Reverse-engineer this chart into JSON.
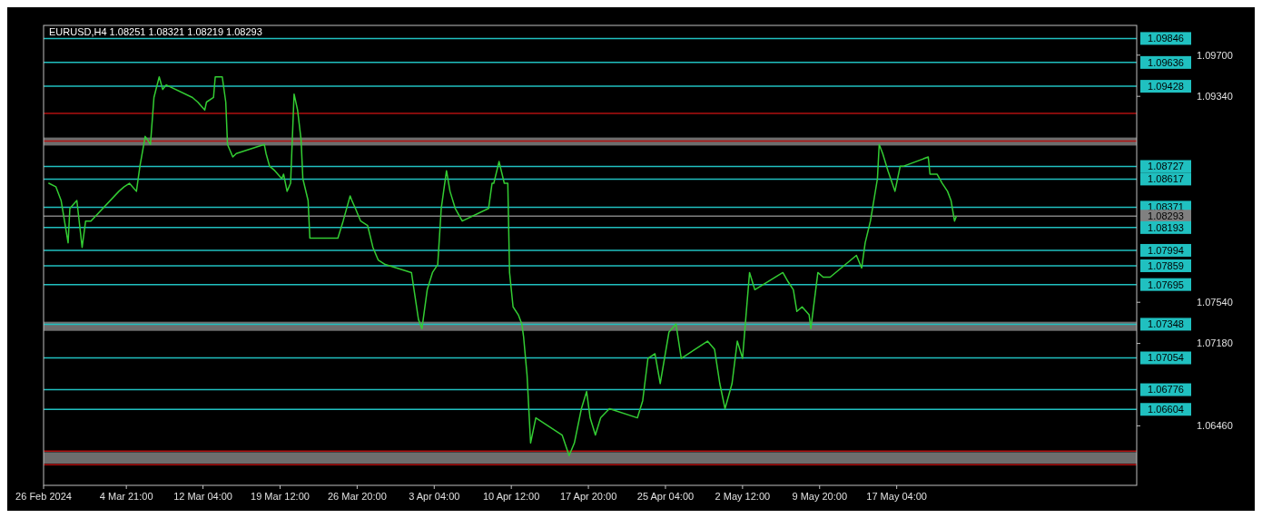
{
  "chart_data": {
    "type": "line",
    "title": "EURUSD,H4 1.08251 1.08321 1.08219 1.08293",
    "grid": false,
    "marker": "none",
    "line_style": "solid",
    "x": [
      "2024-02-26T12:00",
      "2024-02-27T04:00",
      "2024-02-27T16:00",
      "2024-02-28T08:00",
      "2024-02-28T12:00",
      "2024-02-29T04:00",
      "2024-02-29T16:00",
      "2024-03-01T00:00",
      "2024-03-01T12:00",
      "2024-03-04T04:00",
      "2024-03-04T16:00",
      "2024-03-05T04:00",
      "2024-03-05T20:00",
      "2024-03-06T04:00",
      "2024-03-06T16:00",
      "2024-03-07T04:00",
      "2024-03-07T12:00",
      "2024-03-08T00:00",
      "2024-03-08T08:00",
      "2024-03-08T16:00",
      "2024-03-11T04:00",
      "2024-03-11T16:00",
      "2024-03-12T08:00",
      "2024-03-12T12:00",
      "2024-03-13T04:00",
      "2024-03-13T08:00",
      "2024-03-14T00:00",
      "2024-03-14T08:00",
      "2024-03-14T12:00",
      "2024-03-15T00:00",
      "2024-03-15T08:00",
      "2024-03-18T00:00",
      "2024-03-18T04:00",
      "2024-03-18T12:00",
      "2024-03-19T00:00",
      "2024-03-19T16:00",
      "2024-03-19T20:00",
      "2024-03-20T04:00",
      "2024-03-20T12:00",
      "2024-03-20T20:00",
      "2024-03-21T04:00",
      "2024-03-21T12:00",
      "2024-03-21T16:00",
      "2024-03-22T04:00",
      "2024-03-22T08:00",
      "2024-03-25T00:00",
      "2024-03-25T12:00",
      "2024-03-26T04:00",
      "2024-03-26T08:00",
      "2024-03-26T16:00",
      "2024-03-27T04:00",
      "2024-03-27T20:00",
      "2024-03-28T08:00",
      "2024-03-28T20:00",
      "2024-03-29T12:00",
      "2024-04-01T00:00",
      "2024-04-01T16:00",
      "2024-04-02T00:00",
      "2024-04-02T12:00",
      "2024-04-03T00:00",
      "2024-04-03T12:00",
      "2024-04-03T20:00",
      "2024-04-04T08:00",
      "2024-04-04T16:00",
      "2024-04-05T04:00",
      "2024-04-05T20:00",
      "2024-04-08T08:00",
      "2024-04-08T16:00",
      "2024-04-08T20:00",
      "2024-04-09T08:00",
      "2024-04-09T20:00",
      "2024-04-10T04:00",
      "2024-04-10T08:00",
      "2024-04-10T16:00",
      "2024-04-11T04:00",
      "2024-04-11T12:00",
      "2024-04-11T16:00",
      "2024-04-12T00:00",
      "2024-04-12T08:00",
      "2024-04-12T20:00",
      "2024-04-15T08:00",
      "2024-04-16T00:00",
      "2024-04-16T12:00",
      "2024-04-17T04:00",
      "2024-04-17T16:00",
      "2024-04-18T00:00",
      "2024-04-18T12:00",
      "2024-04-19T00:00",
      "2024-04-19T20:00",
      "2024-04-22T12:00",
      "2024-04-23T00:00",
      "2024-04-23T12:00",
      "2024-04-24T04:00",
      "2024-04-24T16:00",
      "2024-04-25T12:00",
      "2024-04-26T04:00",
      "2024-04-26T16:00",
      "2024-04-29T04:00",
      "2024-04-29T20:00",
      "2024-04-30T08:00",
      "2024-04-30T20:00",
      "2024-05-01T12:00",
      "2024-05-02T00:00",
      "2024-05-02T12:00",
      "2024-05-02T20:00",
      "2024-05-03T04:00",
      "2024-05-03T16:00",
      "2024-05-06T08:00",
      "2024-05-06T20:00",
      "2024-05-07T08:00",
      "2024-05-07T16:00",
      "2024-05-08T04:00",
      "2024-05-08T20:00",
      "2024-05-09T00:00",
      "2024-05-09T16:00",
      "2024-05-10T04:00",
      "2024-05-10T20:00",
      "2024-05-13T08:00",
      "2024-05-13T20:00",
      "2024-05-14T04:00",
      "2024-05-14T16:00",
      "2024-05-15T08:00",
      "2024-05-15T12:00",
      "2024-05-15T20:00",
      "2024-05-16T08:00",
      "2024-05-17T00:00",
      "2024-05-17T12:00",
      "2024-05-17T20:00",
      "2024-05-20T04:00",
      "2024-05-20T08:00",
      "2024-05-21T00:00",
      "2024-05-21T12:00",
      "2024-05-22T00:00",
      "2024-05-22T08:00",
      "2024-05-22T16:00",
      "2024-05-22T20:00"
    ],
    "series": [
      {
        "color": "#33cc33",
        "values": [
          1.0858,
          1.0855,
          1.0843,
          1.0806,
          1.0836,
          1.0843,
          1.0802,
          1.0825,
          1.0825,
          1.0851,
          1.0855,
          1.0858,
          1.0851,
          1.0873,
          1.0899,
          1.0892,
          1.0933,
          1.0951,
          1.094,
          1.0944,
          1.0933,
          1.0929,
          1.0922,
          1.0929,
          1.0933,
          1.0951,
          1.0951,
          1.0929,
          1.0892,
          1.0881,
          1.0884,
          1.0892,
          1.0884,
          1.0873,
          1.0869,
          1.0862,
          1.0866,
          1.0851,
          1.0858,
          1.0936,
          1.0922,
          1.0896,
          1.0862,
          1.0843,
          1.081,
          1.081,
          1.0825,
          1.0847,
          1.0843,
          1.0836,
          1.0825,
          1.0821,
          1.0802,
          1.0791,
          1.0787,
          1.078,
          1.0739,
          1.0731,
          1.0765,
          1.078,
          1.0787,
          1.0836,
          1.0869,
          1.0851,
          1.0836,
          1.0825,
          1.0836,
          1.0858,
          1.0858,
          1.0877,
          1.0858,
          1.0858,
          1.078,
          1.075,
          1.0743,
          1.0735,
          1.0724,
          1.069,
          1.0631,
          1.0653,
          1.0638,
          1.062,
          1.0631,
          1.0661,
          1.0676,
          1.0653,
          1.0638,
          1.0653,
          1.0661,
          1.0653,
          1.0668,
          1.0705,
          1.0709,
          1.0683,
          1.0728,
          1.0735,
          1.0705,
          1.072,
          1.0713,
          1.0683,
          1.0661,
          1.0683,
          1.072,
          1.0705,
          1.0743,
          1.078,
          1.0765,
          1.078,
          1.0772,
          1.0765,
          1.0746,
          1.075,
          1.0743,
          1.0731,
          1.078,
          1.0776,
          1.0776,
          1.0795,
          1.0784,
          1.0806,
          1.0825,
          1.0862,
          1.0892,
          1.0884,
          1.0869,
          1.0851,
          1.0873,
          1.0873,
          1.0881,
          1.0866,
          1.0866,
          1.0858,
          1.0851,
          1.0843,
          1.0825,
          1.0829
        ]
      }
    ],
    "xlim": [
      "2024-02-26",
      "2024-06-09"
    ],
    "xticks": [
      {
        "value": "2024-02-26",
        "label": "26 Feb 2024"
      },
      {
        "value": "2024-03-04T21:00",
        "label": "4 Mar 21:00"
      },
      {
        "value": "2024-03-12T04:00",
        "label": "12 Mar 04:00"
      },
      {
        "value": "2024-03-19T12:00",
        "label": "19 Mar 12:00"
      },
      {
        "value": "2024-03-26T20:00",
        "label": "26 Mar 20:00"
      },
      {
        "value": "2024-04-03T04:00",
        "label": "3 Apr 04:00"
      },
      {
        "value": "2024-04-10T12:00",
        "label": "10 Apr 12:00"
      },
      {
        "value": "2024-04-17T20:00",
        "label": "17 Apr 20:00"
      },
      {
        "value": "2024-04-25T04:00",
        "label": "25 Apr 04:00"
      },
      {
        "value": "2024-05-02T12:00",
        "label": "2 May 12:00"
      },
      {
        "value": "2024-05-09T20:00",
        "label": "9 May 20:00"
      },
      {
        "value": "2024-05-17T04:00",
        "label": "17 May 04:00"
      }
    ],
    "ylim": [
      1.0594,
      1.0996
    ],
    "yticks": [
      {
        "value": 1.097,
        "label": "1.09700"
      },
      {
        "value": 1.0934,
        "label": "1.09340"
      },
      {
        "value": 1.0754,
        "label": "1.07540"
      },
      {
        "value": 1.0718,
        "label": "1.07180"
      },
      {
        "value": 1.0646,
        "label": "1.06460"
      }
    ],
    "ref_lines": [
      {
        "axis": "y",
        "value": 1.09846,
        "label": "1.09846",
        "color": "#20c0c0"
      },
      {
        "axis": "y",
        "value": 1.09636,
        "label": "1.09636",
        "color": "#20c0c0"
      },
      {
        "axis": "y",
        "value": 1.09428,
        "label": "1.09428",
        "color": "#20c0c0"
      },
      {
        "axis": "y",
        "value": 1.0919,
        "label": null,
        "color": "#b01010"
      },
      {
        "axis": "y",
        "value": 1.0895,
        "label": null,
        "color": "#b01010"
      },
      {
        "axis": "y",
        "value": 1.08727,
        "label": "1.08727",
        "color": "#20c0c0"
      },
      {
        "axis": "y",
        "value": 1.08617,
        "label": "1.08617",
        "color": "#20c0c0"
      },
      {
        "axis": "y",
        "value": 1.08371,
        "label": "1.08371",
        "color": "#20c0c0"
      },
      {
        "axis": "y",
        "value": 1.08293,
        "label": "1.08293",
        "color": "#808080"
      },
      {
        "axis": "y",
        "value": 1.08193,
        "label": "1.08193",
        "color": "#20c0c0"
      },
      {
        "axis": "y",
        "value": 1.07994,
        "label": "1.07994",
        "color": "#20c0c0"
      },
      {
        "axis": "y",
        "value": 1.07859,
        "label": "1.07859",
        "color": "#20c0c0"
      },
      {
        "axis": "y",
        "value": 1.07695,
        "label": "1.07695",
        "color": "#20c0c0"
      },
      {
        "axis": "y",
        "value": 1.07348,
        "label": "1.07348",
        "color": "#20c0c0"
      },
      {
        "axis": "y",
        "value": 1.07054,
        "label": "1.07054",
        "color": "#20c0c0"
      },
      {
        "axis": "y",
        "value": 1.06776,
        "label": "1.06776",
        "color": "#20c0c0"
      },
      {
        "axis": "y",
        "value": 1.06604,
        "label": "1.06604",
        "color": "#20c0c0"
      },
      {
        "axis": "y",
        "value": 1.0624,
        "label": null,
        "color": "#b01010"
      },
      {
        "axis": "y",
        "value": 1.0612,
        "label": null,
        "color": "#b01010"
      }
    ],
    "bands": [
      {
        "axis": "y",
        "from": 1.0891,
        "to": 1.0898,
        "color": "#808080"
      },
      {
        "axis": "y",
        "from": 1.0729,
        "to": 1.0737,
        "color": "#808080"
      },
      {
        "axis": "y",
        "from": 1.0613,
        "to": 1.0623,
        "color": "#808080"
      }
    ]
  }
}
